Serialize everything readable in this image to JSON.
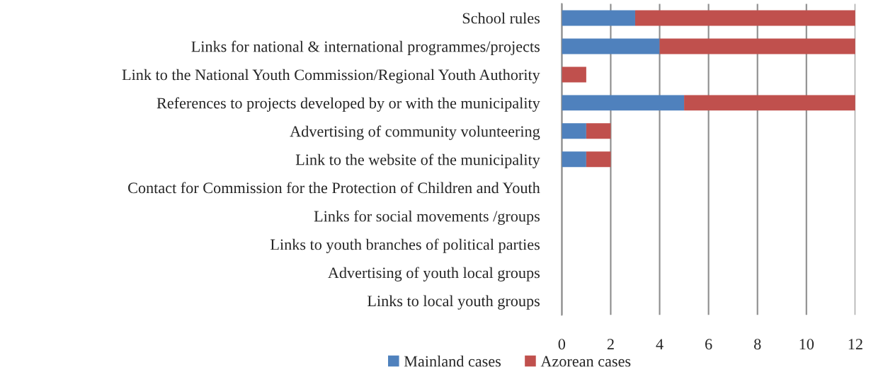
{
  "chart_data": {
    "type": "bar",
    "orientation": "horizontal",
    "stacked": true,
    "categories": [
      "School rules",
      "Links for national & international programmes/projects",
      "Link to the National Youth Commission/Regional Youth Authority",
      "References to projects developed by or with the municipality",
      "Advertising of community volunteering",
      "Link to the website of the municipality",
      "Contact for Commission for the Protection of Children and Youth",
      "Links for social movements /groups",
      "Links to youth branches of political parties",
      "Advertising of youth local groups",
      "Links to local youth groups"
    ],
    "series": [
      {
        "name": "Mainland cases",
        "color": "#4f81bd",
        "values": [
          3,
          4,
          0,
          5,
          1,
          1,
          0,
          0,
          0,
          0,
          0
        ]
      },
      {
        "name": "Azorean cases",
        "color": "#c0504d",
        "values": [
          9,
          8,
          1,
          7,
          1,
          1,
          0,
          0,
          0,
          0,
          0
        ]
      }
    ],
    "xlim": [
      0,
      12
    ],
    "xticks": [
      0,
      2,
      4,
      6,
      8,
      10,
      12
    ],
    "grid": "x",
    "legend": "bottom"
  }
}
